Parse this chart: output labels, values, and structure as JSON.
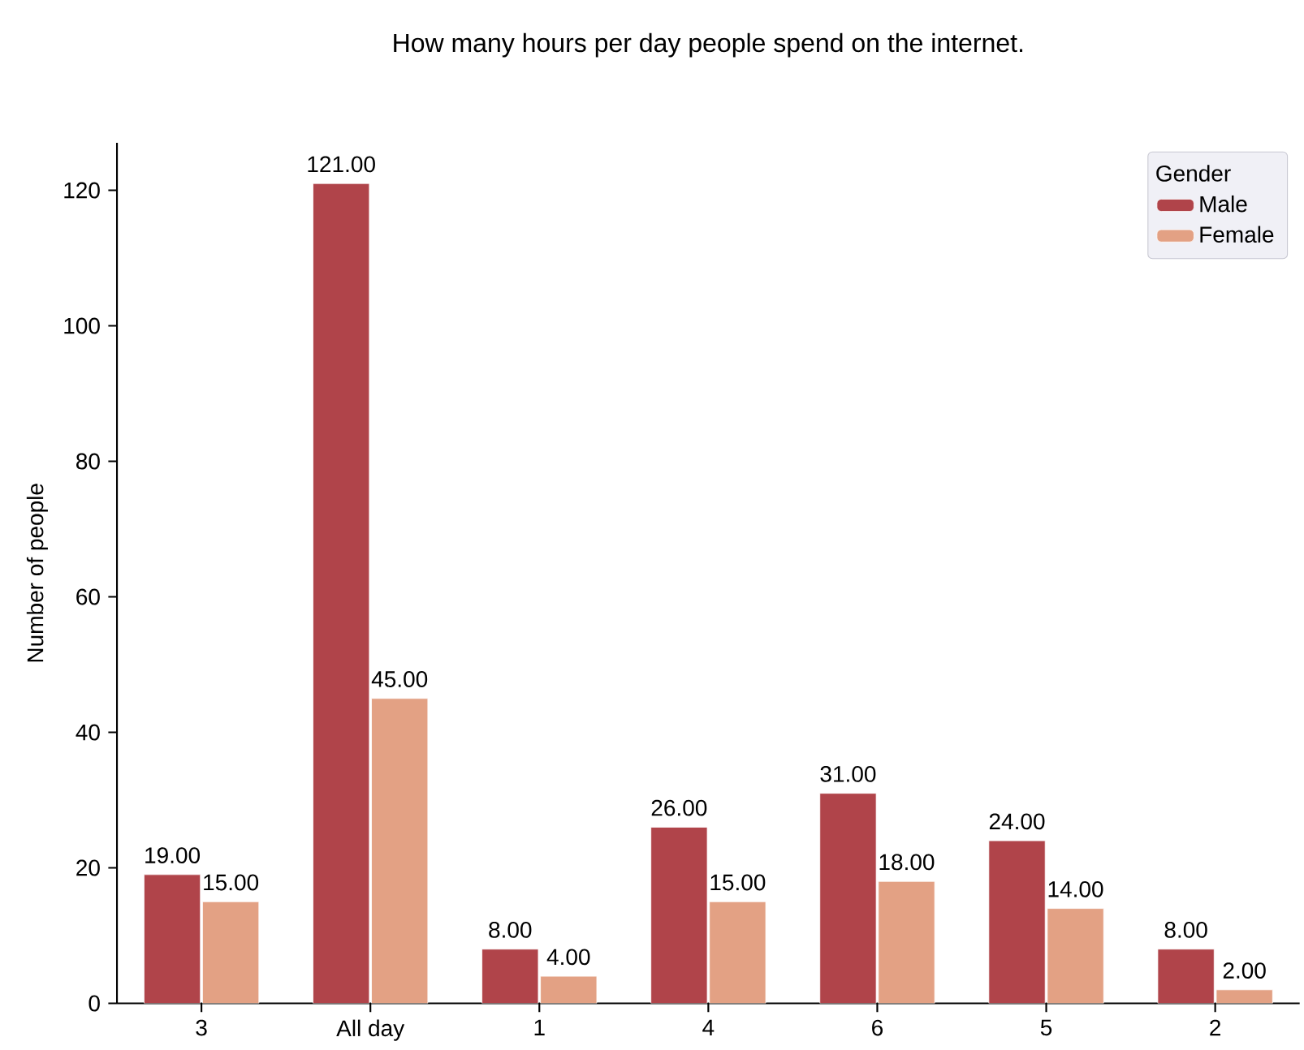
{
  "chart_data": {
    "type": "bar",
    "title": "How many hours per day people spend on the internet.",
    "ylabel": "Number of people",
    "legend_title": "Gender",
    "categories": [
      "3",
      "All day",
      "1",
      "4",
      "6",
      "5",
      "2"
    ],
    "series": [
      {
        "name": "Male",
        "color": "#b0444a",
        "values": [
          19,
          121,
          8,
          26,
          31,
          24,
          8
        ],
        "value_labels": [
          "19.00",
          "121.00",
          "8.00",
          "26.00",
          "31.00",
          "24.00",
          "8.00"
        ]
      },
      {
        "name": "Female",
        "color": "#e3a184",
        "values": [
          15,
          45,
          4,
          15,
          18,
          14,
          2
        ],
        "value_labels": [
          "15.00",
          "45.00",
          "4.00",
          "15.00",
          "18.00",
          "14.00",
          "2.00"
        ]
      }
    ],
    "ylim": [
      0,
      127
    ],
    "yticks": [
      0,
      20,
      40,
      60,
      80,
      100,
      120
    ],
    "legend": "top right",
    "grid": false
  }
}
